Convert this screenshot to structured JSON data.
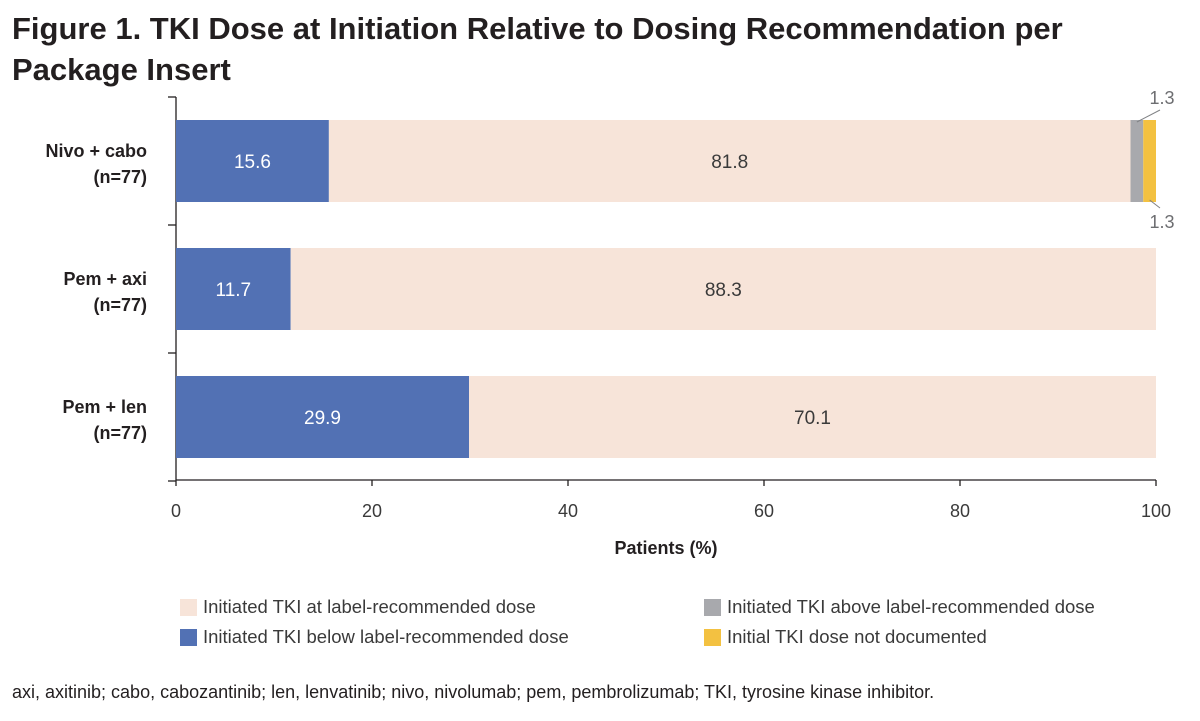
{
  "title": "Figure 1. TKI Dose at Initiation Relative to Dosing Recommendation per Package Insert",
  "footnote": "axi, axitinib; cabo, cabozantinib; len, lenvatinib; nivo, nivolumab; pem, pembrolizumab; TKI, tyrosine kinase inhibitor.",
  "legend": [
    {
      "label": "Initiated TKI at label-recommended dose",
      "color": "#f7e4d9"
    },
    {
      "label": "Initiated TKI above label-recommended dose",
      "color": "#a8a9ad"
    },
    {
      "label": "Initiated TKI below label-recommended dose",
      "color": "#5271b4"
    },
    {
      "label": "Initial TKI dose not documented",
      "color": "#f3c141"
    }
  ],
  "chart_data": {
    "type": "bar",
    "orientation": "horizontal",
    "stacked": true,
    "categories": [
      {
        "line1": "Nivo + cabo",
        "line2": "(n=77)"
      },
      {
        "line1": "Pem + axi",
        "line2": "(n=77)"
      },
      {
        "line1": "Pem + len",
        "line2": "(n=77)"
      }
    ],
    "series": [
      {
        "name": "Initiated TKI below label-recommended dose",
        "color": "#5271b4",
        "label_color": "#ffffff",
        "values": [
          15.6,
          11.7,
          29.9
        ]
      },
      {
        "name": "Initiated TKI at label-recommended dose",
        "color": "#f7e4d9",
        "label_color": "#3a3a3a",
        "values": [
          81.8,
          88.3,
          70.1
        ]
      },
      {
        "name": "Initiated TKI above label-recommended dose",
        "color": "#a8a9ad",
        "label_color": "#6d6e71",
        "values": [
          1.3,
          0,
          0
        ]
      },
      {
        "name": "Initial TKI dose not documented",
        "color": "#f3c141",
        "label_color": "#6d6e71",
        "values": [
          1.3,
          0,
          0
        ]
      }
    ],
    "data_labels": [
      [
        "15.6",
        "81.8",
        "1.3",
        "1.3"
      ],
      [
        "11.7",
        "88.3",
        "",
        ""
      ],
      [
        "29.9",
        "70.1",
        "",
        ""
      ]
    ],
    "xlabel": "Patients (%)",
    "xlim": [
      0,
      100
    ],
    "xticks": [
      0,
      20,
      40,
      60,
      80,
      100
    ],
    "grid": false,
    "legend_position": "bottom"
  }
}
